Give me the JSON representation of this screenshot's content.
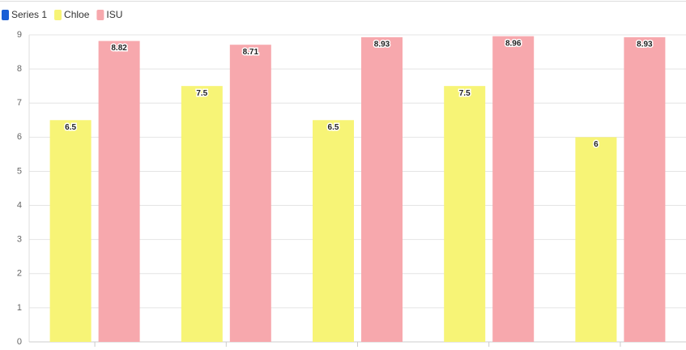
{
  "chart_data": {
    "type": "bar",
    "categories": [
      null,
      null,
      null,
      null,
      null
    ],
    "series": [
      {
        "name": "Series 1",
        "color": "#1a5fd6",
        "values": [
          null,
          null,
          null,
          null,
          null
        ]
      },
      {
        "name": "Chloe",
        "color": "#f7f476",
        "values": [
          6.5,
          7.5,
          6.5,
          7.5,
          6
        ]
      },
      {
        "name": "ISU",
        "color": "#f7a8ad",
        "values": [
          8.82,
          8.71,
          8.93,
          8.96,
          8.93
        ]
      }
    ],
    "ylim": [
      0,
      9
    ],
    "yticks": [
      0,
      1,
      2,
      3,
      4,
      5,
      6,
      7,
      8,
      9
    ],
    "grid": true,
    "legend": "top-left"
  }
}
